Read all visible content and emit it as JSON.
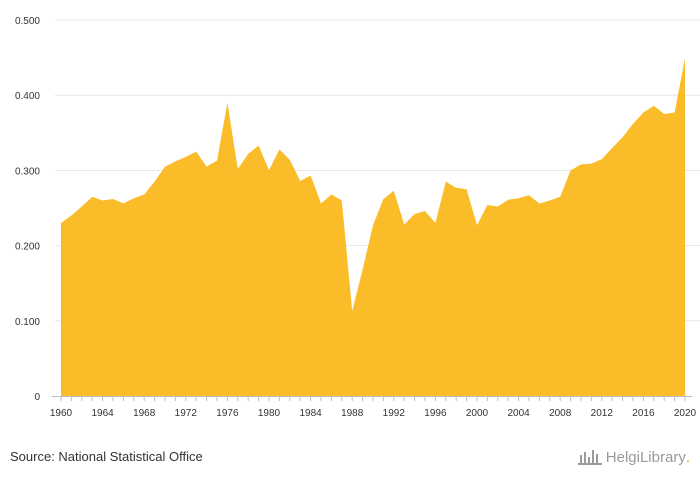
{
  "chart_data": {
    "type": "area",
    "x": [
      1960,
      1961,
      1962,
      1963,
      1964,
      1965,
      1966,
      1967,
      1968,
      1969,
      1970,
      1971,
      1972,
      1973,
      1974,
      1975,
      1976,
      1977,
      1978,
      1979,
      1980,
      1981,
      1982,
      1983,
      1984,
      1985,
      1986,
      1987,
      1988,
      1989,
      1990,
      1991,
      1992,
      1993,
      1994,
      1995,
      1996,
      1997,
      1998,
      1999,
      2000,
      2001,
      2002,
      2003,
      2004,
      2005,
      2006,
      2007,
      2008,
      2009,
      2010,
      2011,
      2012,
      2013,
      2014,
      2015,
      2016,
      2017,
      2018,
      2019,
      2020
    ],
    "series": [
      {
        "values": [
          0.23,
          0.24,
          0.252,
          0.265,
          0.26,
          0.262,
          0.256,
          0.263,
          0.268,
          0.285,
          0.305,
          0.312,
          0.318,
          0.325,
          0.305,
          0.313,
          0.39,
          0.302,
          0.322,
          0.333,
          0.3,
          0.328,
          0.314,
          0.286,
          0.293,
          0.256,
          0.268,
          0.26,
          0.113,
          0.168,
          0.227,
          0.262,
          0.273,
          0.228,
          0.242,
          0.246,
          0.23,
          0.285,
          0.277,
          0.275,
          0.227,
          0.254,
          0.252,
          0.261,
          0.263,
          0.267,
          0.256,
          0.26,
          0.265,
          0.3,
          0.308,
          0.309,
          0.315,
          0.33,
          0.344,
          0.362,
          0.377,
          0.386,
          0.375,
          0.377,
          0.449
        ],
        "color": "#fbbc2a"
      }
    ],
    "xlim": [
      1960,
      2020
    ],
    "ylim": [
      0,
      0.5
    ],
    "yticks": [
      0,
      0.1,
      0.2,
      0.3,
      0.4,
      0.5
    ],
    "ytick_labels": [
      "0",
      "0.100",
      "0.200",
      "0.300",
      "0.400",
      "0.500"
    ],
    "xtick_labels": [
      "1960",
      "1964",
      "1968",
      "1972",
      "1976",
      "1980",
      "1984",
      "1988",
      "1992",
      "1996",
      "2000",
      "2004",
      "2008",
      "2012",
      "2016",
      "2020"
    ],
    "grid": true
  },
  "footer": {
    "source": "Source: National Statistical Office",
    "brand_main": "HelgiLibrary",
    "brand_dot": "."
  }
}
